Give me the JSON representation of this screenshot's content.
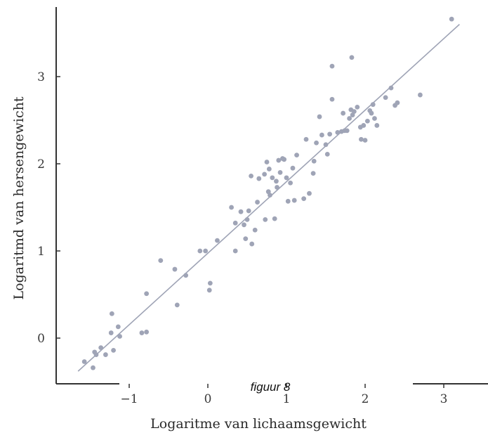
{
  "chart_data": {
    "type": "scatter",
    "title": "",
    "caption": "figuur 8",
    "xlabel": "Logaritme van lichaamsgewicht",
    "ylabel": "Logaritmd van hersengewicht",
    "xlim": [
      -1.7,
      3.2
    ],
    "ylim": [
      -0.45,
      3.75
    ],
    "x_ticks": [
      {
        "value": -1,
        "label": "−1"
      },
      {
        "value": 0,
        "label": "0"
      },
      {
        "value": 1,
        "label": "1"
      },
      {
        "value": 2,
        "label": "2"
      },
      {
        "value": 3,
        "label": "3"
      }
    ],
    "y_ticks": [
      {
        "value": 0,
        "label": "0"
      },
      {
        "value": 1,
        "label": "1"
      },
      {
        "value": 2,
        "label": "2"
      },
      {
        "value": 3,
        "label": "3"
      }
    ],
    "trend_line": {
      "x": [
        -1.65,
        3.2
      ],
      "y": [
        -0.38,
        3.6
      ]
    },
    "points": [
      {
        "x": -1.57,
        "y": -0.27
      },
      {
        "x": -1.44,
        "y": -0.16
      },
      {
        "x": -1.46,
        "y": -0.34
      },
      {
        "x": -1.42,
        "y": -0.19
      },
      {
        "x": -1.36,
        "y": -0.11
      },
      {
        "x": -1.3,
        "y": -0.19
      },
      {
        "x": -1.2,
        "y": -0.14
      },
      {
        "x": -1.23,
        "y": 0.06
      },
      {
        "x": -1.22,
        "y": 0.28
      },
      {
        "x": -1.14,
        "y": 0.13
      },
      {
        "x": -1.12,
        "y": 0.02
      },
      {
        "x": -0.84,
        "y": 0.06
      },
      {
        "x": -0.78,
        "y": 0.07
      },
      {
        "x": -0.78,
        "y": 0.51
      },
      {
        "x": -0.6,
        "y": 0.89
      },
      {
        "x": -0.42,
        "y": 0.79
      },
      {
        "x": -0.39,
        "y": 0.38
      },
      {
        "x": -0.28,
        "y": 0.72
      },
      {
        "x": -0.1,
        "y": 1.0
      },
      {
        "x": -0.03,
        "y": 1.0
      },
      {
        "x": 0.02,
        "y": 0.55
      },
      {
        "x": 0.03,
        "y": 0.63
      },
      {
        "x": 0.12,
        "y": 1.12
      },
      {
        "x": 0.3,
        "y": 1.5
      },
      {
        "x": 0.35,
        "y": 1.32
      },
      {
        "x": 0.35,
        "y": 1.0
      },
      {
        "x": 0.42,
        "y": 1.45
      },
      {
        "x": 0.46,
        "y": 1.3
      },
      {
        "x": 0.48,
        "y": 1.14
      },
      {
        "x": 0.5,
        "y": 1.36
      },
      {
        "x": 0.52,
        "y": 1.46
      },
      {
        "x": 0.55,
        "y": 1.86
      },
      {
        "x": 0.56,
        "y": 1.08
      },
      {
        "x": 0.6,
        "y": 1.24
      },
      {
        "x": 0.63,
        "y": 1.56
      },
      {
        "x": 0.65,
        "y": 1.83
      },
      {
        "x": 0.72,
        "y": 1.88
      },
      {
        "x": 0.73,
        "y": 1.36
      },
      {
        "x": 0.75,
        "y": 2.02
      },
      {
        "x": 0.77,
        "y": 1.68
      },
      {
        "x": 0.78,
        "y": 1.94
      },
      {
        "x": 0.79,
        "y": 1.64
      },
      {
        "x": 0.82,
        "y": 1.84
      },
      {
        "x": 0.85,
        "y": 1.37
      },
      {
        "x": 0.87,
        "y": 1.8
      },
      {
        "x": 0.88,
        "y": 1.73
      },
      {
        "x": 0.9,
        "y": 2.04
      },
      {
        "x": 0.92,
        "y": 1.9
      },
      {
        "x": 0.95,
        "y": 2.06
      },
      {
        "x": 0.97,
        "y": 2.05
      },
      {
        "x": 1.0,
        "y": 1.84
      },
      {
        "x": 1.02,
        "y": 1.57
      },
      {
        "x": 1.05,
        "y": 1.78
      },
      {
        "x": 1.08,
        "y": 1.95
      },
      {
        "x": 1.1,
        "y": 1.58
      },
      {
        "x": 1.13,
        "y": 2.1
      },
      {
        "x": 1.22,
        "y": 1.6
      },
      {
        "x": 1.25,
        "y": 2.28
      },
      {
        "x": 1.29,
        "y": 1.66
      },
      {
        "x": 1.34,
        "y": 1.89
      },
      {
        "x": 1.35,
        "y": 2.03
      },
      {
        "x": 1.38,
        "y": 2.24
      },
      {
        "x": 1.42,
        "y": 2.54
      },
      {
        "x": 1.45,
        "y": 2.33
      },
      {
        "x": 1.5,
        "y": 2.22
      },
      {
        "x": 1.52,
        "y": 2.11
      },
      {
        "x": 1.55,
        "y": 2.34
      },
      {
        "x": 1.58,
        "y": 2.74
      },
      {
        "x": 1.65,
        "y": 2.36
      },
      {
        "x": 1.7,
        "y": 2.37
      },
      {
        "x": 1.72,
        "y": 2.58
      },
      {
        "x": 1.74,
        "y": 2.38
      },
      {
        "x": 1.77,
        "y": 2.38
      },
      {
        "x": 1.8,
        "y": 2.52
      },
      {
        "x": 1.82,
        "y": 2.62
      },
      {
        "x": 1.84,
        "y": 2.56
      },
      {
        "x": 1.86,
        "y": 2.6
      },
      {
        "x": 1.9,
        "y": 2.65
      },
      {
        "x": 1.94,
        "y": 2.42
      },
      {
        "x": 1.95,
        "y": 2.28
      },
      {
        "x": 1.98,
        "y": 2.44
      },
      {
        "x": 2.0,
        "y": 2.27
      },
      {
        "x": 2.03,
        "y": 2.49
      },
      {
        "x": 2.06,
        "y": 2.61
      },
      {
        "x": 2.08,
        "y": 2.58
      },
      {
        "x": 2.1,
        "y": 2.68
      },
      {
        "x": 2.12,
        "y": 2.52
      },
      {
        "x": 2.15,
        "y": 2.44
      },
      {
        "x": 2.26,
        "y": 2.76
      },
      {
        "x": 2.33,
        "y": 2.87
      },
      {
        "x": 2.38,
        "y": 2.67
      },
      {
        "x": 2.41,
        "y": 2.7
      },
      {
        "x": 1.58,
        "y": 3.12
      },
      {
        "x": 1.83,
        "y": 3.22
      },
      {
        "x": 2.7,
        "y": 2.79
      },
      {
        "x": 3.1,
        "y": 3.66
      }
    ],
    "grid": false,
    "legend": "none",
    "colors": {
      "points": "#9fa4b6",
      "line": "#9ea3b5",
      "axes": "#333333"
    }
  }
}
